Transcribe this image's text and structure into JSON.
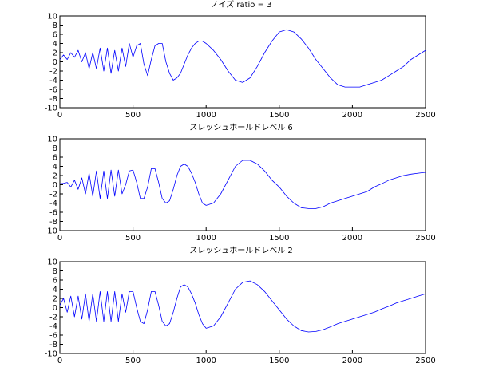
{
  "colors": {
    "line": "#0000ff",
    "axis": "#000000",
    "background": "#ffffff"
  },
  "chart_data": [
    {
      "type": "line",
      "title": "ノイズ ratio =  3",
      "xlabel": "",
      "ylabel": "",
      "xlim": [
        0,
        2500
      ],
      "ylim": [
        -10,
        10
      ],
      "xticks": [
        0,
        500,
        1000,
        1500,
        2000,
        2500
      ],
      "yticks": [
        10,
        8,
        6,
        4,
        2,
        0,
        -2,
        -4,
        -6,
        -8,
        -10
      ],
      "grid": false,
      "series": [
        {
          "x": [
            0,
            25,
            50,
            75,
            100,
            125,
            150,
            175,
            200,
            225,
            250,
            275,
            300,
            325,
            350,
            375,
            400,
            425,
            450,
            475,
            500,
            525,
            550,
            575,
            600,
            625,
            650,
            675,
            700,
            725,
            750,
            775,
            800,
            825,
            850,
            875,
            900,
            925,
            950,
            975,
            1000,
            1050,
            1100,
            1150,
            1200,
            1250,
            1300,
            1350,
            1400,
            1450,
            1500,
            1550,
            1600,
            1650,
            1700,
            1750,
            1800,
            1850,
            1900,
            1950,
            2000,
            2050,
            2100,
            2150,
            2200,
            2250,
            2300,
            2350,
            2400,
            2450,
            2500
          ],
          "y": [
            0.5,
            1.5,
            0.5,
            2,
            1,
            2.5,
            0,
            2,
            -1.5,
            2,
            -1.5,
            3,
            -2,
            3,
            -2.5,
            2.5,
            -2,
            3,
            -1,
            4,
            1,
            3.5,
            4,
            -0.5,
            -3,
            0.5,
            3.5,
            4,
            4,
            0,
            -2.5,
            -4,
            -3.5,
            -2.5,
            -0.5,
            1.5,
            3,
            4,
            4.5,
            4.5,
            4,
            2.5,
            0.5,
            -2,
            -4,
            -4.5,
            -3.5,
            -1,
            2,
            4.5,
            6.5,
            7,
            6.5,
            5,
            3,
            0.5,
            -1.5,
            -3.5,
            -5,
            -5.5,
            -5.5,
            -5.5,
            -5,
            -4.5,
            -4,
            -3,
            -2,
            -1,
            0.5,
            1.5,
            2.5
          ]
        }
      ]
    },
    {
      "type": "line",
      "title": "スレッシュホールドレベル    6",
      "xlabel": "",
      "ylabel": "",
      "xlim": [
        0,
        2500
      ],
      "ylim": [
        -10,
        10
      ],
      "xticks": [
        0,
        500,
        1000,
        1500,
        2000,
        2500
      ],
      "yticks": [
        10,
        8,
        6,
        4,
        2,
        0,
        -2,
        -4,
        -6,
        -8,
        -10
      ],
      "grid": false,
      "series": [
        {
          "x": [
            0,
            25,
            50,
            75,
            100,
            125,
            150,
            175,
            200,
            225,
            250,
            275,
            300,
            325,
            350,
            375,
            400,
            425,
            450,
            475,
            500,
            525,
            550,
            575,
            600,
            625,
            650,
            675,
            700,
            725,
            750,
            775,
            800,
            825,
            850,
            875,
            900,
            925,
            950,
            975,
            1000,
            1050,
            1100,
            1150,
            1200,
            1250,
            1300,
            1350,
            1400,
            1450,
            1500,
            1550,
            1600,
            1650,
            1700,
            1750,
            1800,
            1850,
            1900,
            1950,
            2000,
            2050,
            2100,
            2150,
            2200,
            2250,
            2300,
            2350,
            2400,
            2450,
            2500
          ],
          "y": [
            0.2,
            0.3,
            0.5,
            -0.5,
            1,
            -1,
            1.5,
            -2,
            2.5,
            -2.5,
            3,
            -3,
            3,
            -3,
            3.2,
            -2.5,
            3.2,
            -2,
            0,
            3,
            3.2,
            0.5,
            -3,
            -3,
            -0.5,
            3.5,
            3.5,
            0.5,
            -3,
            -4,
            -3.5,
            -1,
            2,
            4,
            4.5,
            4,
            2.5,
            0.5,
            -2,
            -4,
            -4.5,
            -4,
            -2,
            1,
            4,
            5.3,
            5.3,
            4.5,
            3,
            1,
            -0.5,
            -2.5,
            -4,
            -5,
            -5.2,
            -5.2,
            -4.8,
            -4,
            -3.5,
            -3,
            -2.5,
            -2,
            -1.5,
            -0.5,
            0.2,
            1,
            1.5,
            2,
            2.3,
            2.5,
            2.7
          ]
        }
      ]
    },
    {
      "type": "line",
      "title": "スレッシュホールドレベル    2",
      "xlabel": "",
      "ylabel": "",
      "xlim": [
        0,
        2500
      ],
      "ylim": [
        -10,
        10
      ],
      "xticks": [
        0,
        500,
        1000,
        1500,
        2000,
        2500
      ],
      "yticks": [
        10,
        8,
        6,
        4,
        2,
        0,
        -2,
        -4,
        -6,
        -8,
        -10
      ],
      "grid": false,
      "series": [
        {
          "x": [
            0,
            25,
            50,
            75,
            100,
            125,
            150,
            175,
            200,
            225,
            250,
            275,
            300,
            325,
            350,
            375,
            400,
            425,
            450,
            475,
            500,
            525,
            550,
            575,
            600,
            625,
            650,
            675,
            700,
            725,
            750,
            775,
            800,
            825,
            850,
            875,
            900,
            925,
            950,
            975,
            1000,
            1050,
            1100,
            1150,
            1200,
            1250,
            1300,
            1350,
            1400,
            1450,
            1500,
            1550,
            1600,
            1650,
            1700,
            1750,
            1800,
            1850,
            1900,
            1950,
            2000,
            2050,
            2100,
            2150,
            2200,
            2250,
            2300,
            2350,
            2400,
            2450,
            2500
          ],
          "y": [
            0.5,
            2,
            -1,
            2.5,
            -2,
            2.5,
            -2.5,
            3,
            -3,
            3,
            -3,
            3.5,
            -3,
            3.5,
            -3,
            3.5,
            -3,
            3,
            -1,
            3.5,
            3.5,
            0,
            -3,
            -3.5,
            -0.5,
            3.5,
            3.5,
            0.5,
            -3,
            -4,
            -3.5,
            -1,
            2,
            4.5,
            5,
            4.5,
            3,
            1,
            -1.5,
            -3.5,
            -4.5,
            -4,
            -2,
            1,
            4,
            5.5,
            5.8,
            5,
            3.5,
            1.5,
            -0.5,
            -2.5,
            -4,
            -5,
            -5.3,
            -5.2,
            -4.8,
            -4.2,
            -3.5,
            -3,
            -2.5,
            -2,
            -1.5,
            -1,
            -0.3,
            0.3,
            1,
            1.5,
            2,
            2.5,
            3
          ]
        }
      ]
    }
  ]
}
